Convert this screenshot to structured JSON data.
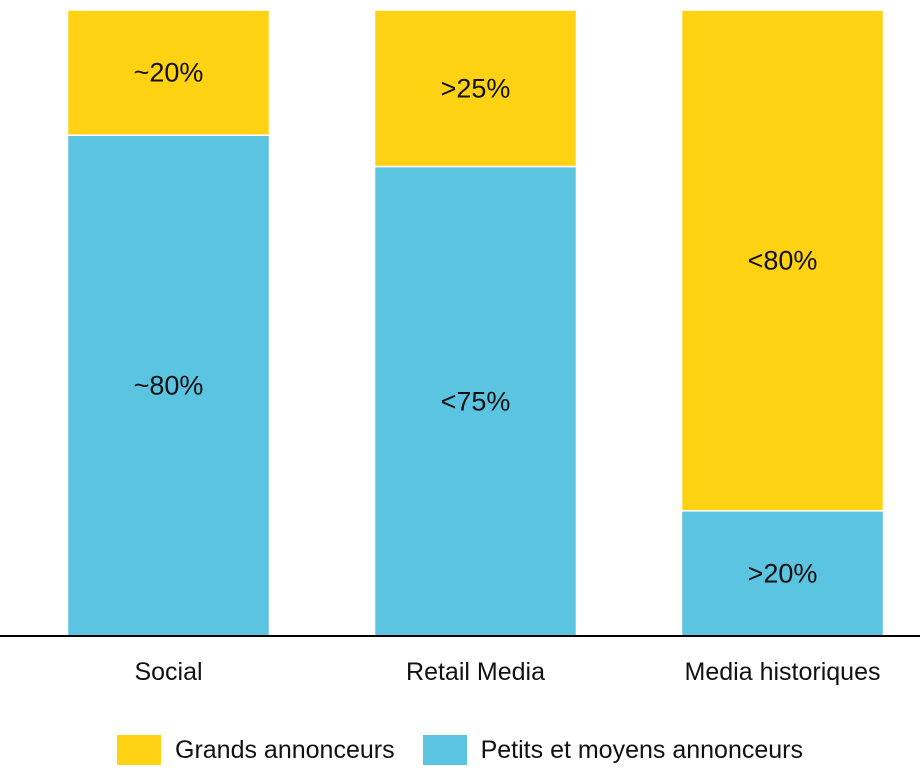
{
  "chart_data": {
    "type": "bar",
    "stacked": true,
    "normalized": true,
    "categories": [
      "Social",
      "Retail Media",
      "Media historiques"
    ],
    "series": [
      {
        "name": "Petits et moyens annonceurs",
        "color": "#5BC4E1",
        "values": [
          80,
          75,
          20
        ],
        "labels": [
          "~80%",
          "<75%",
          ">20%"
        ]
      },
      {
        "name": "Grands annonceurs",
        "color": "#FFD314",
        "values": [
          20,
          25,
          80
        ],
        "labels": [
          "~20%",
          ">25%",
          "<80%"
        ]
      }
    ],
    "ylim": [
      0,
      100
    ],
    "grid": false,
    "legend_position": "bottom"
  },
  "legend": {
    "items": [
      {
        "label": "Grands annonceurs",
        "color": "#FFD314"
      },
      {
        "label": "Petits et moyens annonceurs",
        "color": "#5BC4E1"
      }
    ]
  }
}
